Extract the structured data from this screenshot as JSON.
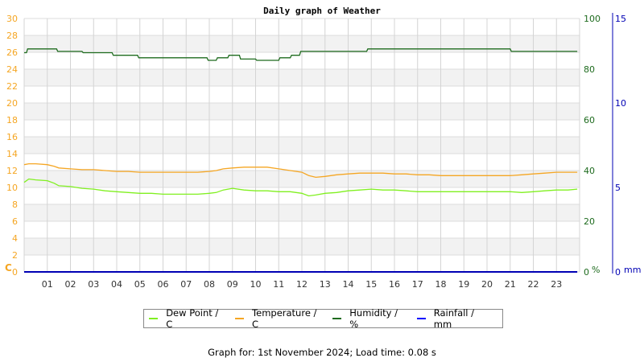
{
  "chart_data": {
    "type": "line",
    "title": "Daily graph of Weather",
    "xlabel": "",
    "x_ticks": [
      "01",
      "02",
      "03",
      "04",
      "05",
      "06",
      "07",
      "08",
      "09",
      "10",
      "11",
      "12",
      "13",
      "14",
      "15",
      "16",
      "17",
      "18",
      "19",
      "20",
      "21",
      "22",
      "23"
    ],
    "x_range_hours": [
      0,
      24
    ],
    "y_axes": {
      "left": {
        "label": "C",
        "range": [
          0,
          30
        ],
        "ticks": [
          0,
          2,
          4,
          6,
          8,
          10,
          12,
          14,
          16,
          18,
          20,
          22,
          24,
          26,
          28,
          30
        ],
        "color": "#f5a623"
      },
      "right1": {
        "label": "%",
        "range": [
          0,
          100
        ],
        "ticks": [
          0,
          20,
          40,
          60,
          80,
          100
        ],
        "color": "#1e6b1e"
      },
      "right2": {
        "label": "mm",
        "range": [
          0,
          15
        ],
        "ticks": [
          0,
          5,
          10,
          15
        ],
        "color": "#0000b4"
      }
    },
    "grid": true,
    "legend_position": "bottom",
    "series": [
      {
        "name": "Dew Point / C",
        "axis": "left",
        "color": "#80f020",
        "x": [
          0,
          0.2,
          0.5,
          1,
          1.3,
          1.5,
          2,
          2.5,
          3,
          3.5,
          4,
          4.5,
          5,
          5.5,
          6,
          6.5,
          7,
          7.5,
          8,
          8.3,
          8.6,
          9,
          9.5,
          10,
          10.5,
          11,
          11.5,
          12,
          12.3,
          12.6,
          13,
          13.5,
          14,
          14.5,
          15,
          15.5,
          16,
          16.5,
          17,
          17.5,
          18,
          18.5,
          19,
          19.5,
          20,
          20.5,
          21,
          21.5,
          22,
          22.5,
          23,
          23.5,
          23.9
        ],
        "values": [
          10.6,
          11.0,
          10.9,
          10.8,
          10.5,
          10.2,
          10.1,
          9.9,
          9.8,
          9.6,
          9.5,
          9.4,
          9.3,
          9.3,
          9.2,
          9.2,
          9.2,
          9.2,
          9.3,
          9.4,
          9.7,
          9.9,
          9.7,
          9.6,
          9.6,
          9.5,
          9.5,
          9.3,
          9.0,
          9.1,
          9.3,
          9.4,
          9.6,
          9.7,
          9.8,
          9.7,
          9.7,
          9.6,
          9.5,
          9.5,
          9.5,
          9.5,
          9.5,
          9.5,
          9.5,
          9.5,
          9.5,
          9.4,
          9.5,
          9.6,
          9.7,
          9.7,
          9.8
        ]
      },
      {
        "name": "Temperature / C",
        "axis": "left",
        "color": "#f5a623",
        "x": [
          0,
          0.2,
          0.5,
          1,
          1.3,
          1.5,
          2,
          2.5,
          3,
          3.5,
          4,
          4.5,
          5,
          5.5,
          6,
          6.5,
          7,
          7.5,
          8,
          8.3,
          8.6,
          9,
          9.5,
          10,
          10.5,
          11,
          11.5,
          12,
          12.3,
          12.6,
          13,
          13.5,
          14,
          14.5,
          15,
          15.5,
          16,
          16.5,
          17,
          17.5,
          18,
          18.5,
          19,
          19.5,
          20,
          20.5,
          21,
          21.5,
          22,
          22.5,
          23,
          23.5,
          23.9
        ],
        "values": [
          12.7,
          12.8,
          12.8,
          12.7,
          12.5,
          12.3,
          12.2,
          12.1,
          12.1,
          12.0,
          11.9,
          11.9,
          11.8,
          11.8,
          11.8,
          11.8,
          11.8,
          11.8,
          11.9,
          12.0,
          12.2,
          12.3,
          12.4,
          12.4,
          12.4,
          12.2,
          12.0,
          11.8,
          11.4,
          11.2,
          11.3,
          11.5,
          11.6,
          11.7,
          11.7,
          11.7,
          11.6,
          11.6,
          11.5,
          11.5,
          11.4,
          11.4,
          11.4,
          11.4,
          11.4,
          11.4,
          11.4,
          11.5,
          11.6,
          11.7,
          11.8,
          11.8,
          11.8
        ]
      },
      {
        "name": "Humidity / %",
        "axis": "right1",
        "color": "#1e6b1e",
        "x": [
          0,
          0.1,
          0.15,
          1.4,
          1.45,
          2.5,
          2.55,
          3.8,
          3.85,
          4.9,
          4.95,
          7.9,
          7.95,
          8.3,
          8.35,
          8.8,
          8.85,
          9.3,
          9.35,
          10.0,
          10.05,
          11.0,
          11.05,
          11.5,
          11.55,
          11.9,
          11.95,
          14.8,
          14.85,
          21.0,
          21.05,
          23.9
        ],
        "values": [
          86.5,
          86.5,
          88,
          88,
          87,
          87,
          86.5,
          86.5,
          85.5,
          85.5,
          84.5,
          84.5,
          83.5,
          83.5,
          84.5,
          84.5,
          85.5,
          85.5,
          84,
          84,
          83.5,
          83.5,
          84.5,
          84.5,
          85.5,
          85.5,
          87,
          87,
          88,
          88,
          87,
          87
        ]
      },
      {
        "name": "Rainfall / mm",
        "axis": "right2",
        "color": "#0000b4",
        "x": [
          0,
          23.9
        ],
        "values": [
          0,
          0
        ]
      }
    ]
  },
  "page": {
    "title": "Daily graph of Weather",
    "axis_left_unit": "C",
    "axis_right1_unit": "%",
    "axis_right2_unit": "mm",
    "legend": [
      {
        "label": "Dew Point / C",
        "color": "#80f020"
      },
      {
        "label": "Temperature / C",
        "color": "#f5a623"
      },
      {
        "label": "Humidity / %",
        "color": "#1e6b1e"
      },
      {
        "label": "Rainfall / mm",
        "color": "#0000ff"
      }
    ],
    "footer": "Graph for: 1st November 2024; Load time: 0.08 s"
  }
}
